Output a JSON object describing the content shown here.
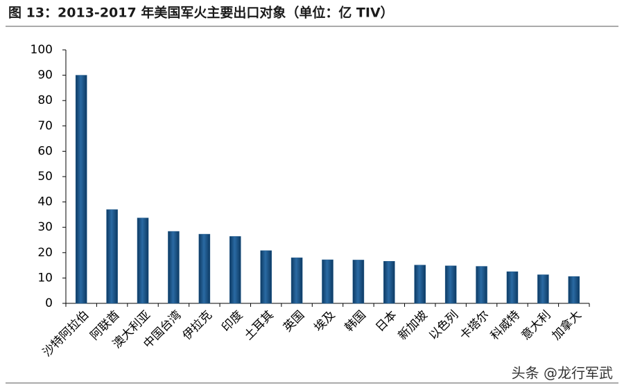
{
  "chart_data": {
    "type": "bar",
    "title": "图 13：2013-2017 年美国军火主要出口对象（单位：亿 TIV）",
    "categories": [
      "沙特阿拉伯",
      "阿联酋",
      "澳大利亚",
      "中国台湾",
      "伊拉克",
      "印度",
      "土耳其",
      "英国",
      "埃及",
      "韩国",
      "日本",
      "新加坡",
      "以色列",
      "卡塔尔",
      "科威特",
      "意大利",
      "加拿大"
    ],
    "values": [
      90,
      37,
      33.7,
      28.4,
      27.3,
      26.4,
      20.8,
      18,
      17.2,
      17.1,
      16.6,
      15.1,
      14.8,
      14.6,
      12.5,
      11.3,
      10.6
    ],
    "color": "#1f5a8c",
    "ylim": [
      0,
      100
    ],
    "yticks": [
      0,
      10,
      20,
      30,
      40,
      50,
      60,
      70,
      80,
      90,
      100
    ],
    "grid": false,
    "watermark": "头条 @龙行军武"
  }
}
